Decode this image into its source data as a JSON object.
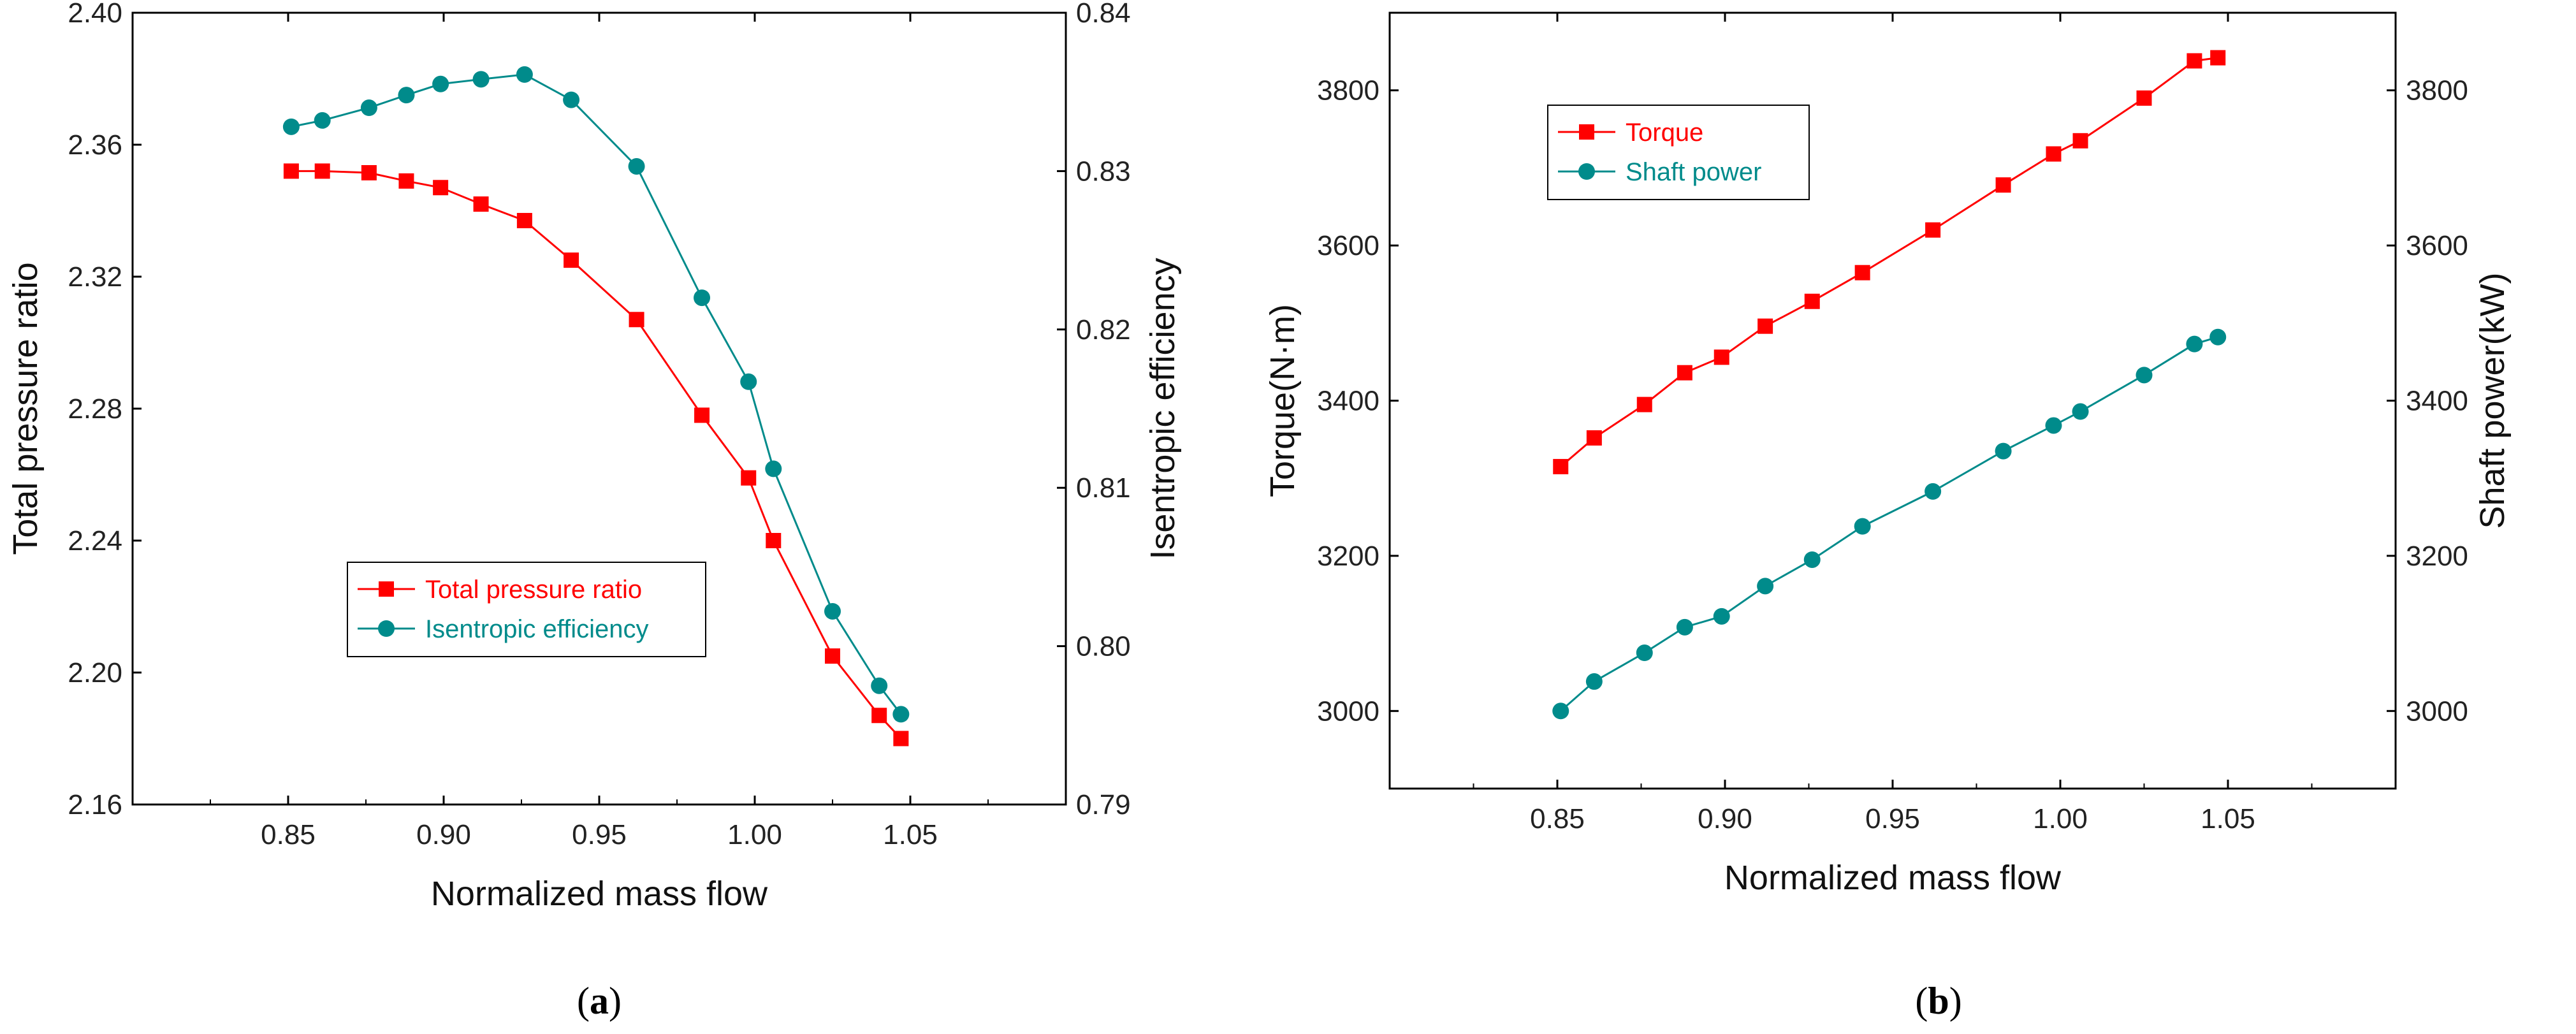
{
  "chart_data": [
    {
      "type": "line",
      "caption_letter": "a",
      "xlabel": "Normalized mass flow",
      "ylabel_left": "Total pressure ratio",
      "ylabel_right": "Isentropic efficiency",
      "xlim": [
        0.8,
        1.1
      ],
      "ylim_left": [
        2.16,
        2.4
      ],
      "ylim_right": [
        0.79,
        0.84
      ],
      "x_ticks": [
        "0.85",
        "0.90",
        "0.95",
        "1.00",
        "1.05"
      ],
      "y_left_ticks": [
        "2.16",
        "2.20",
        "2.24",
        "2.28",
        "2.32",
        "2.36",
        "2.40"
      ],
      "y_right_ticks": [
        "0.79",
        "0.80",
        "0.81",
        "0.82",
        "0.83",
        "0.84"
      ],
      "grid": false,
      "legend_position": "lower-center",
      "x": [
        0.851,
        0.861,
        0.876,
        0.888,
        0.899,
        0.912,
        0.926,
        0.941,
        0.962,
        0.983,
        0.998,
        1.006,
        1.025,
        1.04,
        1.047
      ],
      "series": [
        {
          "name": "Total pressure ratio",
          "axis": "left",
          "color": "#ff0000",
          "marker": "square",
          "values": [
            2.352,
            2.352,
            2.3515,
            2.349,
            2.347,
            2.342,
            2.337,
            2.325,
            2.307,
            2.278,
            2.259,
            2.24,
            2.205,
            2.187,
            2.18
          ]
        },
        {
          "name": "Isentropic efficiency",
          "axis": "right",
          "color": "#008b8b",
          "marker": "circle",
          "values": [
            0.8328,
            0.8332,
            0.834,
            0.8348,
            0.8355,
            0.8358,
            0.8361,
            0.8345,
            0.8303,
            0.822,
            0.8167,
            0.8112,
            0.8022,
            0.7975,
            0.7957
          ]
        }
      ]
    },
    {
      "type": "line",
      "caption_letter": "b",
      "xlabel": "Normalized mass flow",
      "ylabel_left": "Torque(N·m)",
      "ylabel_right": "Shaft power(kW)",
      "xlim": [
        0.8,
        1.1
      ],
      "ylim_left": [
        2900,
        3900
      ],
      "ylim_right": [
        2900,
        3900
      ],
      "x_ticks": [
        "0.85",
        "0.90",
        "0.95",
        "1.00",
        "1.05"
      ],
      "y_left_ticks": [
        "3000",
        "3200",
        "3400",
        "3600",
        "3800"
      ],
      "y_right_ticks": [
        "3000",
        "3200",
        "3400",
        "3600",
        "3800"
      ],
      "grid": false,
      "legend_position": "top-left",
      "x": [
        0.851,
        0.861,
        0.876,
        0.888,
        0.899,
        0.912,
        0.926,
        0.941,
        0.962,
        0.983,
        0.998,
        1.006,
        1.025,
        1.04,
        1.047
      ],
      "series": [
        {
          "name": "Torque",
          "axis": "left",
          "color": "#ff0000",
          "marker": "square",
          "values": [
            3315,
            3352,
            3395,
            3436,
            3456,
            3496,
            3528,
            3565,
            3620,
            3678,
            3718,
            3735,
            3790,
            3838,
            3842
          ]
        },
        {
          "name": "Shaft power",
          "axis": "right",
          "color": "#008b8b",
          "marker": "circle",
          "values": [
            3000,
            3038,
            3075,
            3108,
            3122,
            3161,
            3195,
            3238,
            3283,
            3335,
            3368,
            3386,
            3433,
            3473,
            3482
          ]
        }
      ]
    }
  ]
}
